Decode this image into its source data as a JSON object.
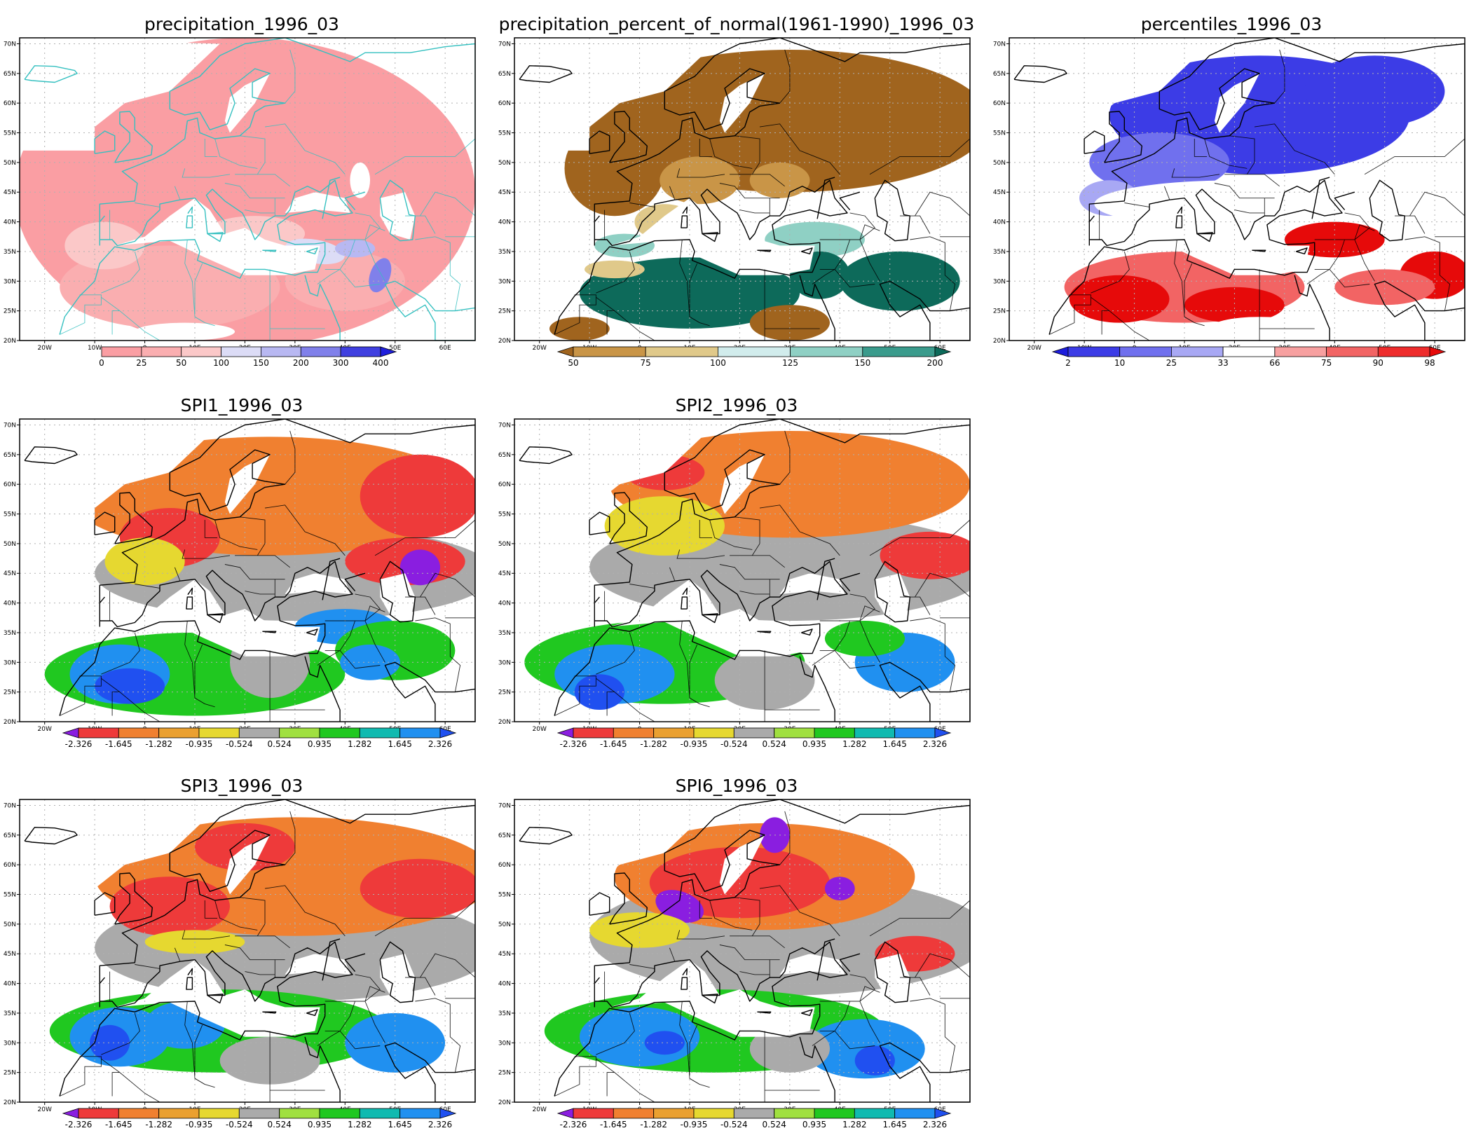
{
  "figure": {
    "latitude_ticks": [
      "70N",
      "65N",
      "60N",
      "55N",
      "50N",
      "45N",
      "40N",
      "35N",
      "30N",
      "25N",
      "20N"
    ],
    "longitude_ticks": [
      "20W",
      "10W",
      "0",
      "10E",
      "20E",
      "30E",
      "40E",
      "50E",
      "60E"
    ],
    "map_extent": {
      "lon_min": -25,
      "lon_max": 66,
      "lat_min": 20,
      "lat_max": 71
    }
  },
  "panels": [
    {
      "id": "precip",
      "title": "precipitation_1996_03",
      "colorbar": {
        "colors": [
          "#fa9ea3",
          "#faaeb0",
          "#fbc8c8",
          "#dcdcf6",
          "#b8b8f2",
          "#8080ea",
          "#4040e0",
          "#1f1fdc"
        ],
        "labels": [
          "0",
          "25",
          "50",
          "100",
          "150",
          "200",
          "300",
          "400"
        ],
        "left_triangle": false,
        "right_triangle": true
      },
      "fields": [
        {
          "name": "below-25",
          "color": "#fa9ea3"
        },
        {
          "name": "25-to-50",
          "color": "#faaeb0"
        },
        {
          "name": "50-to-100",
          "color": "#fbc8c8"
        },
        {
          "name": "100-to-150",
          "color": "#dcdcf6"
        },
        {
          "name": "150-to-200",
          "color": "#b8b8f2"
        },
        {
          "name": "200-to-300",
          "color": "#8080ea"
        },
        {
          "name": "no-data",
          "color": "#ffffff"
        }
      ],
      "coastline_color": "#35c0c0"
    },
    {
      "id": "pct_normal",
      "title": "precipitation_percent_of_normal(1961-1990)_1996_03",
      "colorbar": {
        "colors": [
          "#a0641e",
          "#c99547",
          "#e0c98a",
          "#d1ecec",
          "#8fd0c4",
          "#3a9b8c",
          "#0d6a5a"
        ],
        "labels": [
          "50",
          "75",
          "100",
          "125",
          "150",
          "200"
        ],
        "left_triangle": true,
        "right_triangle": true
      },
      "fields": [
        {
          "name": "below-50",
          "color": "#a0641e"
        },
        {
          "name": "50-to-75",
          "color": "#c99547"
        },
        {
          "name": "75-to-100",
          "color": "#e0c98a"
        },
        {
          "name": "125-to-150",
          "color": "#8fd0c4"
        },
        {
          "name": "above-200",
          "color": "#0d6a5a"
        },
        {
          "name": "no-data",
          "color": "#ffffff"
        }
      ],
      "coastline_color": "#000000"
    },
    {
      "id": "percentiles",
      "title": "percentiles_1996_03",
      "colorbar": {
        "colors": [
          "#1d1ddc",
          "#3c3ce6",
          "#7070ee",
          "#a8a8f4",
          "#ffffff",
          "#f7a0a0",
          "#f26464",
          "#ee2c2c",
          "#e60a0a"
        ],
        "labels": [
          "2",
          "10",
          "25",
          "33",
          "66",
          "75",
          "90",
          "98"
        ],
        "left_triangle": true,
        "right_triangle": true
      },
      "fields": [
        {
          "name": "2-to-10",
          "color": "#3c3ce6"
        },
        {
          "name": "10-to-25",
          "color": "#7070ee"
        },
        {
          "name": "25-to-33",
          "color": "#a8a8f4"
        },
        {
          "name": "33-to-66",
          "color": "#ffffff"
        },
        {
          "name": "75-to-90",
          "color": "#f26464"
        },
        {
          "name": "above-98",
          "color": "#e60a0a"
        }
      ],
      "coastline_color": "#000000"
    },
    {
      "id": "spi1",
      "title": "SPI1_1996_03",
      "colorbar": {
        "colors": [
          "#8a1ee0",
          "#ee3a3a",
          "#f08030",
          "#eaa030",
          "#e6d830",
          "#aaaaaa",
          "#a0e040",
          "#20c820",
          "#10bab0",
          "#2090f0",
          "#2050f0"
        ],
        "labels": [
          "-2.326",
          "-1.645",
          "-1.282",
          "-0.935",
          "-0.524",
          "0.524",
          "0.935",
          "1.282",
          "1.645",
          "2.326"
        ],
        "left_triangle": true,
        "right_triangle": true
      },
      "fields": [
        {
          "name": "extremely-dry",
          "color": "#8a1ee0"
        },
        {
          "name": "severely-dry",
          "color": "#ee3a3a"
        },
        {
          "name": "moderately-dry",
          "color": "#f08030"
        },
        {
          "name": "mildly-dry",
          "color": "#e6d830"
        },
        {
          "name": "near-normal",
          "color": "#aaaaaa"
        },
        {
          "name": "mildly-wet",
          "color": "#20c820"
        },
        {
          "name": "very-wet",
          "color": "#2090f0"
        },
        {
          "name": "extremely-wet",
          "color": "#2050f0"
        }
      ],
      "coastline_color": "#000000"
    },
    {
      "id": "spi2",
      "title": "SPI2_1996_03",
      "colorbar": {
        "colors": [
          "#8a1ee0",
          "#ee3a3a",
          "#f08030",
          "#eaa030",
          "#e6d830",
          "#aaaaaa",
          "#a0e040",
          "#20c820",
          "#10bab0",
          "#2090f0",
          "#2050f0"
        ],
        "labels": [
          "-2.326",
          "-1.645",
          "-1.282",
          "-0.935",
          "-0.524",
          "0.524",
          "0.935",
          "1.282",
          "1.645",
          "2.326"
        ],
        "left_triangle": true,
        "right_triangle": true
      },
      "fields": [
        {
          "name": "severely-dry",
          "color": "#ee3a3a"
        },
        {
          "name": "moderately-dry",
          "color": "#f08030"
        },
        {
          "name": "mildly-dry",
          "color": "#e6d830"
        },
        {
          "name": "near-normal",
          "color": "#aaaaaa"
        },
        {
          "name": "mildly-wet",
          "color": "#20c820"
        },
        {
          "name": "very-wet",
          "color": "#2090f0"
        },
        {
          "name": "extremely-wet",
          "color": "#2050f0"
        }
      ],
      "coastline_color": "#000000"
    },
    {
      "id": "spi3",
      "title": "SPI3_1996_03",
      "colorbar": {
        "colors": [
          "#8a1ee0",
          "#ee3a3a",
          "#f08030",
          "#eaa030",
          "#e6d830",
          "#aaaaaa",
          "#a0e040",
          "#20c820",
          "#10bab0",
          "#2090f0",
          "#2050f0"
        ],
        "labels": [
          "-2.326",
          "-1.645",
          "-1.282",
          "-0.935",
          "-0.524",
          "0.524",
          "0.935",
          "1.282",
          "1.645",
          "2.326"
        ],
        "left_triangle": true,
        "right_triangle": true
      },
      "fields": [
        {
          "name": "severely-dry",
          "color": "#ee3a3a"
        },
        {
          "name": "moderately-dry",
          "color": "#f08030"
        },
        {
          "name": "mildly-dry",
          "color": "#e6d830"
        },
        {
          "name": "near-normal",
          "color": "#aaaaaa"
        },
        {
          "name": "mildly-wet",
          "color": "#20c820"
        },
        {
          "name": "very-wet",
          "color": "#2090f0"
        },
        {
          "name": "extremely-wet",
          "color": "#2050f0"
        }
      ],
      "coastline_color": "#000000"
    },
    {
      "id": "spi6",
      "title": "SPI6_1996_03",
      "colorbar": {
        "colors": [
          "#8a1ee0",
          "#ee3a3a",
          "#f08030",
          "#eaa030",
          "#e6d830",
          "#aaaaaa",
          "#a0e040",
          "#20c820",
          "#10bab0",
          "#2090f0",
          "#2050f0"
        ],
        "labels": [
          "-2.326",
          "-1.645",
          "-1.282",
          "-0.935",
          "-0.524",
          "0.524",
          "0.935",
          "1.282",
          "1.645",
          "2.326"
        ],
        "left_triangle": true,
        "right_triangle": true
      },
      "fields": [
        {
          "name": "extremely-dry",
          "color": "#8a1ee0"
        },
        {
          "name": "severely-dry",
          "color": "#ee3a3a"
        },
        {
          "name": "moderately-dry",
          "color": "#f08030"
        },
        {
          "name": "mildly-dry",
          "color": "#e6d830"
        },
        {
          "name": "near-normal",
          "color": "#aaaaaa"
        },
        {
          "name": "mildly-wet",
          "color": "#20c820"
        },
        {
          "name": "very-wet",
          "color": "#2090f0"
        },
        {
          "name": "extremely-wet",
          "color": "#2050f0"
        }
      ],
      "coastline_color": "#000000"
    }
  ]
}
